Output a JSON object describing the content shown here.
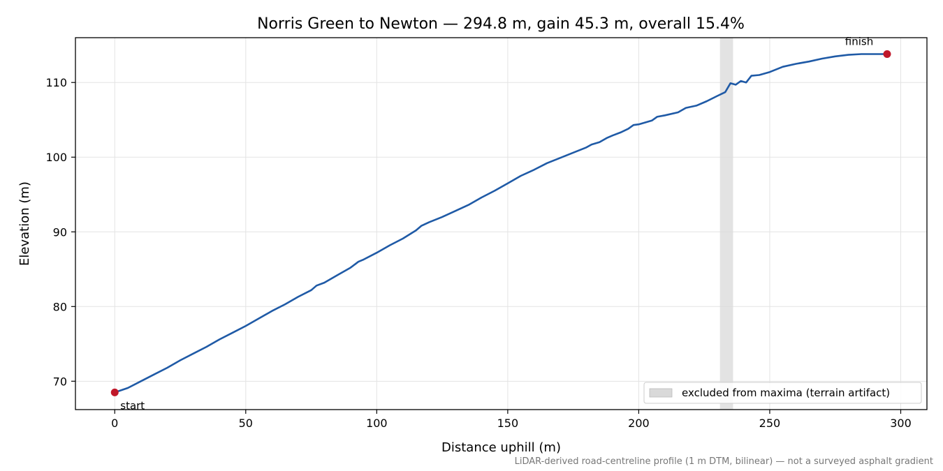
{
  "chart_data": {
    "type": "line",
    "title": "Norris Green to Newton — 294.8 m, gain 45.3 m, overall 15.4%",
    "xlabel": "Distance uphill (m)",
    "ylabel": "Elevation (m)",
    "xlim": [
      -15,
      310
    ],
    "ylim": [
      66.2,
      116
    ],
    "xticks": [
      0,
      50,
      100,
      150,
      200,
      250,
      300
    ],
    "yticks": [
      70,
      80,
      90,
      100,
      110
    ],
    "grid": true,
    "line_color": "#1f5aa6",
    "marker_color": "#c0182a",
    "excluded_band": {
      "x0": 231,
      "x1": 236,
      "label": "excluded from maxima (terrain artifact)",
      "color": "#d9d9d9"
    },
    "legend_placement": "lower-right",
    "start": {
      "x": 0,
      "y": 68.5,
      "label": "start"
    },
    "finish": {
      "x": 294.8,
      "y": 113.8,
      "label": "finish"
    },
    "footnote": "LiDAR-derived road-centreline profile (1 m DTM, bilinear) — not a surveyed asphalt gradient",
    "series": [
      {
        "values": [
          [
            0,
            68.5
          ],
          [
            5,
            69.1
          ],
          [
            10,
            70.0
          ],
          [
            15,
            70.9
          ],
          [
            20,
            71.8
          ],
          [
            25,
            72.8
          ],
          [
            30,
            73.7
          ],
          [
            35,
            74.6
          ],
          [
            40,
            75.6
          ],
          [
            45,
            76.5
          ],
          [
            50,
            77.4
          ],
          [
            55,
            78.4
          ],
          [
            60,
            79.4
          ],
          [
            65,
            80.3
          ],
          [
            70,
            81.3
          ],
          [
            75,
            82.2
          ],
          [
            77,
            82.8
          ],
          [
            80,
            83.2
          ],
          [
            85,
            84.2
          ],
          [
            90,
            85.2
          ],
          [
            93,
            86.0
          ],
          [
            95,
            86.3
          ],
          [
            100,
            87.2
          ],
          [
            105,
            88.2
          ],
          [
            110,
            89.1
          ],
          [
            115,
            90.2
          ],
          [
            117,
            90.8
          ],
          [
            120,
            91.3
          ],
          [
            125,
            92.0
          ],
          [
            130,
            92.8
          ],
          [
            135,
            93.6
          ],
          [
            140,
            94.6
          ],
          [
            145,
            95.5
          ],
          [
            150,
            96.5
          ],
          [
            155,
            97.5
          ],
          [
            160,
            98.3
          ],
          [
            165,
            99.2
          ],
          [
            170,
            99.9
          ],
          [
            175,
            100.6
          ],
          [
            180,
            101.3
          ],
          [
            182,
            101.7
          ],
          [
            185,
            102.0
          ],
          [
            188,
            102.6
          ],
          [
            190,
            102.9
          ],
          [
            193,
            103.3
          ],
          [
            196,
            103.8
          ],
          [
            198,
            104.3
          ],
          [
            200,
            104.4
          ],
          [
            205,
            104.9
          ],
          [
            207,
            105.4
          ],
          [
            210,
            105.6
          ],
          [
            215,
            106.0
          ],
          [
            218,
            106.6
          ],
          [
            222,
            106.9
          ],
          [
            226,
            107.5
          ],
          [
            230,
            108.2
          ],
          [
            233,
            108.7
          ],
          [
            235,
            109.9
          ],
          [
            237,
            109.7
          ],
          [
            239,
            110.2
          ],
          [
            241,
            110.0
          ],
          [
            243,
            110.9
          ],
          [
            246,
            111.0
          ],
          [
            250,
            111.4
          ],
          [
            255,
            112.1
          ],
          [
            260,
            112.5
          ],
          [
            265,
            112.8
          ],
          [
            270,
            113.2
          ],
          [
            275,
            113.5
          ],
          [
            280,
            113.7
          ],
          [
            285,
            113.8
          ],
          [
            290,
            113.8
          ],
          [
            294.8,
            113.8
          ]
        ]
      }
    ]
  }
}
